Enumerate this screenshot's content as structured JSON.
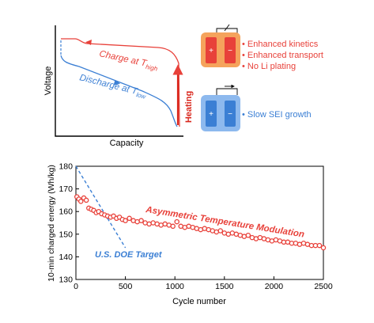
{
  "colors": {
    "red": "#e8413a",
    "blue": "#3b7fd4",
    "dark_red": "#d9261c",
    "light_orange": "#f5a35c",
    "light_blue": "#8db9ee",
    "black": "#000000"
  },
  "top_panel": {
    "ylabel": "Voltage",
    "xlabel": "Capacity",
    "charge_label": "Charge  at",
    "charge_sub": "high",
    "discharge_label": "Discharge at",
    "discharge_sub": "low",
    "T": "T",
    "heating_label": "Heating",
    "hot_cell": {
      "plus": "+",
      "minus": "−",
      "features": [
        "Enhanced kinetics",
        "Enhanced transport",
        "No Li plating"
      ]
    },
    "cold_cell": {
      "plus": "+",
      "minus": "−",
      "features": [
        "Slow SEI growth"
      ]
    },
    "bullet": "•"
  },
  "chart_data": {
    "type": "scatter",
    "xlabel": "Cycle number",
    "ylabel": "10-min charged energy (Wh/kg)",
    "xlim": [
      0,
      2500
    ],
    "ylim": [
      130,
      180
    ],
    "xticks": [
      0,
      500,
      1000,
      1500,
      2000,
      2500
    ],
    "yticks": [
      130,
      140,
      150,
      160,
      170,
      180
    ],
    "grid": false,
    "series": [
      {
        "name": "Asymmetric Temperature Modulation",
        "color": "#e8413a",
        "x": [
          10,
          30,
          50,
          80,
          105,
          130,
          155,
          180,
          205,
          230,
          260,
          290,
          320,
          350,
          380,
          410,
          440,
          470,
          500,
          540,
          580,
          620,
          660,
          700,
          740,
          780,
          820,
          860,
          900,
          940,
          980,
          1020,
          1060,
          1100,
          1140,
          1180,
          1220,
          1260,
          1300,
          1340,
          1380,
          1420,
          1460,
          1500,
          1540,
          1580,
          1620,
          1660,
          1700,
          1740,
          1780,
          1820,
          1860,
          1900,
          1940,
          1980,
          2020,
          2060,
          2100,
          2140,
          2180,
          2220,
          2260,
          2300,
          2340,
          2380,
          2420,
          2460,
          2500
        ],
        "y": [
          166.5,
          165.5,
          164.5,
          166,
          165,
          161.5,
          161,
          160.5,
          159.5,
          160,
          159,
          158.5,
          158,
          157.5,
          158,
          157,
          157.5,
          156.5,
          156,
          157,
          156,
          155.5,
          156,
          155,
          154.5,
          155,
          154.5,
          154,
          154.5,
          154,
          153.5,
          155.5,
          153.5,
          153,
          153.5,
          153,
          152.5,
          152,
          152.5,
          152,
          151.5,
          151,
          151.5,
          150.5,
          150,
          150.5,
          150,
          149.5,
          149,
          149.5,
          148.5,
          148,
          148.5,
          148,
          147.5,
          147,
          147.5,
          147,
          146.5,
          146.5,
          146,
          146,
          145.5,
          146,
          145.5,
          145,
          145,
          145,
          144
        ]
      },
      {
        "name": "U.S. DOE Target",
        "color": "#3b7fd4",
        "style": "dashed",
        "x": [
          0,
          500
        ],
        "y": [
          180,
          144
        ]
      }
    ],
    "annotations": [
      "Asymmetric Temperature Modulation",
      "U.S. DOE Target"
    ]
  }
}
